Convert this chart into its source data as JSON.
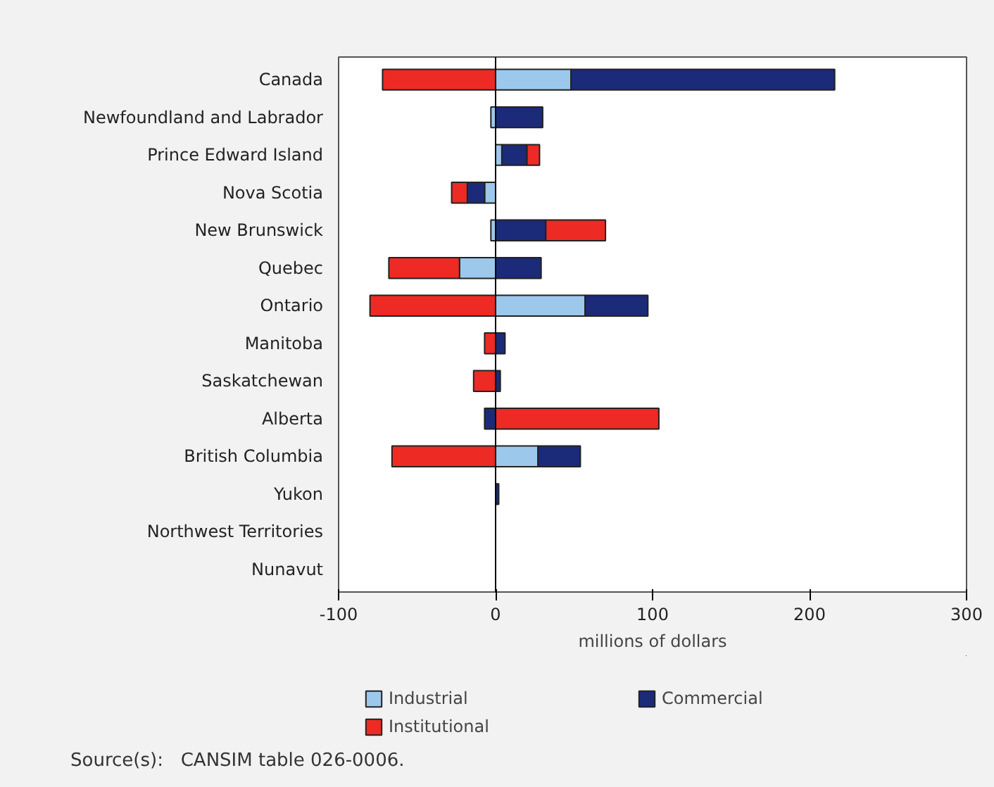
{
  "chart_data": {
    "type": "bar",
    "orientation": "horizontal",
    "stacked": true,
    "categories": [
      "Canada",
      "Newfoundland and Labrador",
      "Prince Edward Island",
      "Nova Scotia",
      "New Brunswick",
      "Quebec",
      "Ontario",
      "Manitoba",
      "Saskatchewan",
      "Alberta",
      "British Columbia",
      "Yukon",
      "Northwest Territories",
      "Nunavut"
    ],
    "series": [
      {
        "name": "Industrial",
        "color": "#9cc8ec",
        "values": [
          48,
          -3,
          4,
          -7,
          -3,
          -23,
          57,
          null,
          0,
          0,
          27,
          0,
          0,
          0
        ]
      },
      {
        "name": "Commercial",
        "color": "#1c2a7a",
        "values": [
          168,
          30,
          16,
          -11,
          32,
          29,
          40,
          6,
          3,
          -7,
          27,
          2,
          null,
          0
        ]
      },
      {
        "name": "Institutional",
        "color": "#ee2a24",
        "values": [
          -72,
          0,
          8,
          -10,
          38,
          -45,
          -80,
          -7,
          -14,
          104,
          -66,
          0,
          0,
          0
        ]
      }
    ],
    "xlim": [
      -100,
      300
    ],
    "xticks": [
      -100,
      0,
      100,
      200,
      300
    ],
    "xlabel": "millions of dollars",
    "ref_lines": [
      {
        "axis": "x",
        "value": 0,
        "color": "#000000"
      }
    ],
    "legend": "bottom",
    "annotations": [
      "Source(s):   CANSIM table 026-0006."
    ]
  }
}
